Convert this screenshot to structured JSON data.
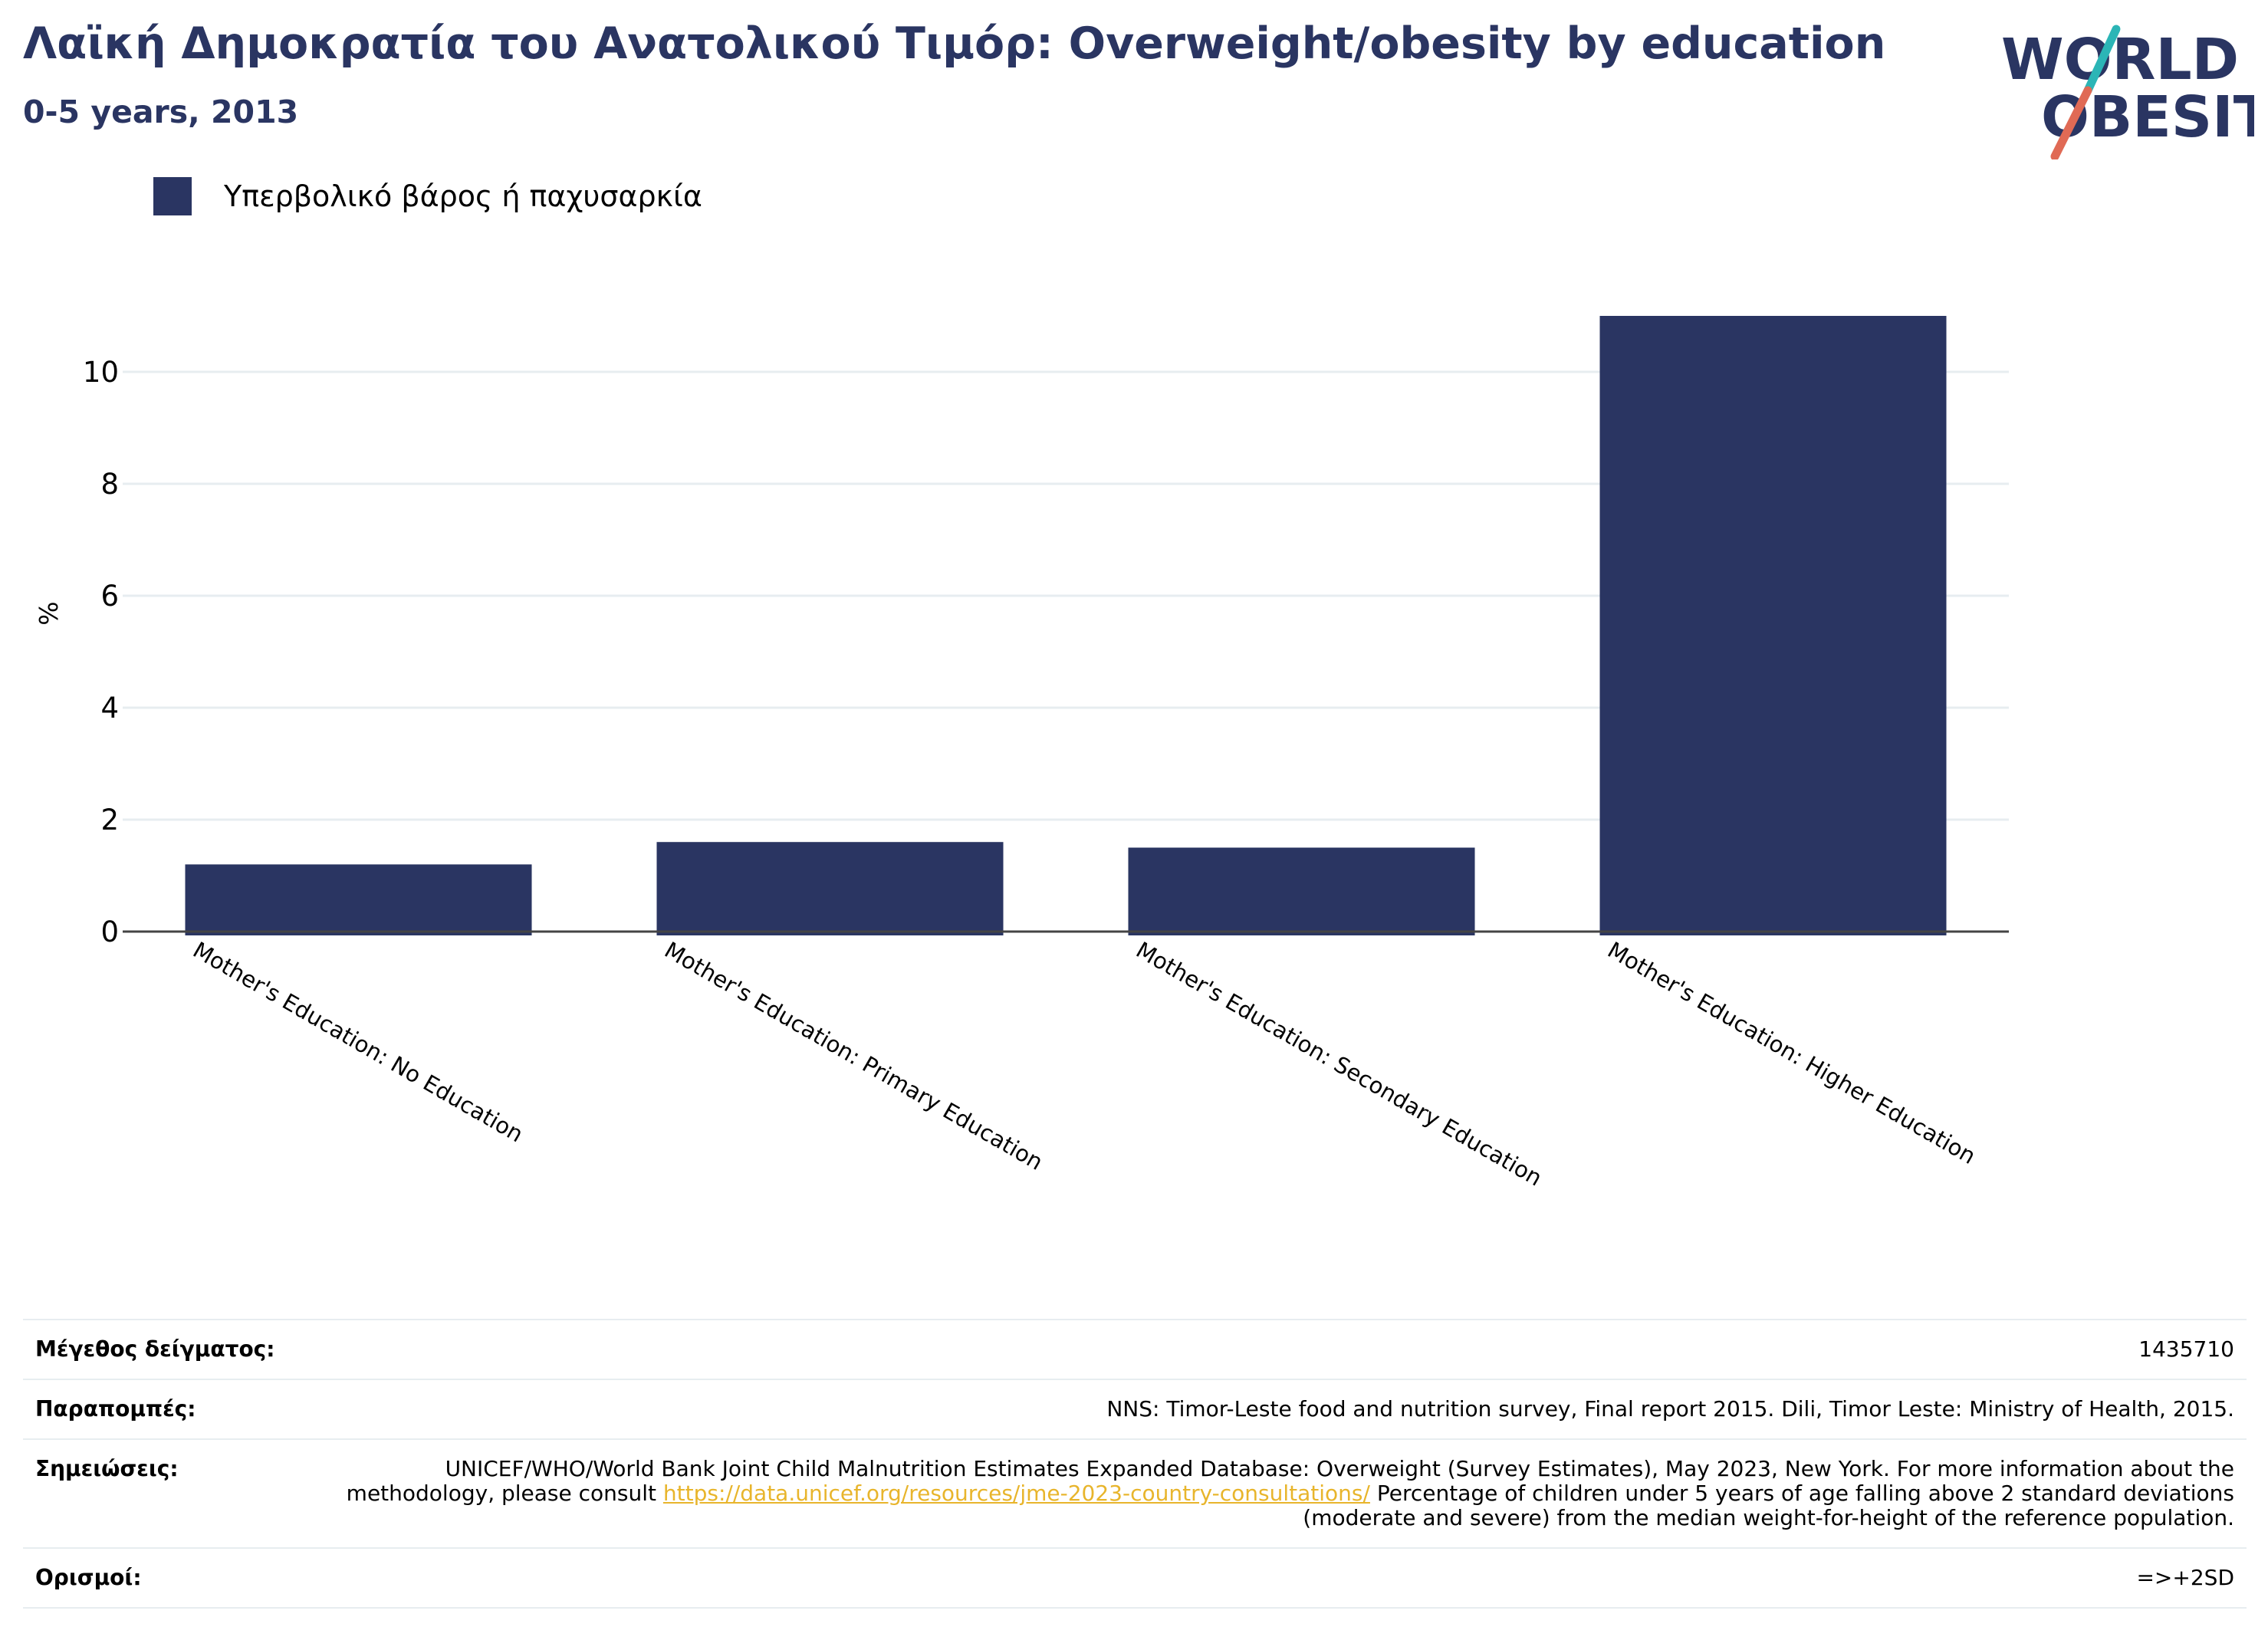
{
  "header": {
    "title": "Λαϊκή Δημοκρατία του Ανατολικού Τιμόρ: Overweight/obesity by education",
    "subtitle": "0-5 years, 2013"
  },
  "logo": {
    "line1": "WORLD",
    "line2": "OBESITY",
    "colors": {
      "text": "#2a3562",
      "slash_top": "#2bb5b6",
      "slash_bottom": "#e06a55"
    }
  },
  "legend": {
    "label": "Υπερβολικό βάρος ή παχυσαρκία",
    "color": "#2a3562"
  },
  "chart_data": {
    "type": "bar",
    "categories": [
      "Mother's Education: No Education",
      "Mother's Education: Primary Education",
      "Mother's Education: Secondary Education",
      "Mother's Education: Higher Education"
    ],
    "series": [
      {
        "name": "Υπερβολικό βάρος ή παχυσαρκία",
        "values": [
          1.2,
          1.6,
          1.5,
          11.0
        ],
        "color": "#2a3562"
      }
    ],
    "ylabel": "%",
    "xlabel": "",
    "ylim": [
      0,
      11.5
    ],
    "yticks": [
      0,
      2,
      4,
      6,
      8,
      10
    ],
    "grid": true,
    "legend_position": "top-left"
  },
  "info": {
    "sample_size": {
      "label": "Μέγεθος δείγματος:",
      "value": "1435710"
    },
    "references": {
      "label": "Παραπομπές:",
      "value": "NNS: Timor-Leste food and nutrition survey, Final report 2015. Dili, Timor Leste: Ministry of Health, 2015."
    },
    "notes": {
      "label": "Σημειώσεις:",
      "text_before": "UNICEF/WHO/World Bank Joint Child Malnutrition Estimates Expanded Database: Overweight (Survey Estimates), May 2023, New York. For more information about the methodology, please consult ",
      "link": "https://data.unicef.org/resources/jme-2023-country-consultations/",
      "text_after": " Percentage of children under 5 years of age falling above 2 standard deviations (moderate and severe) from the median weight-for-height of the reference population."
    },
    "definitions": {
      "label": "Ορισμοί:",
      "value": "=>+2SD"
    }
  }
}
